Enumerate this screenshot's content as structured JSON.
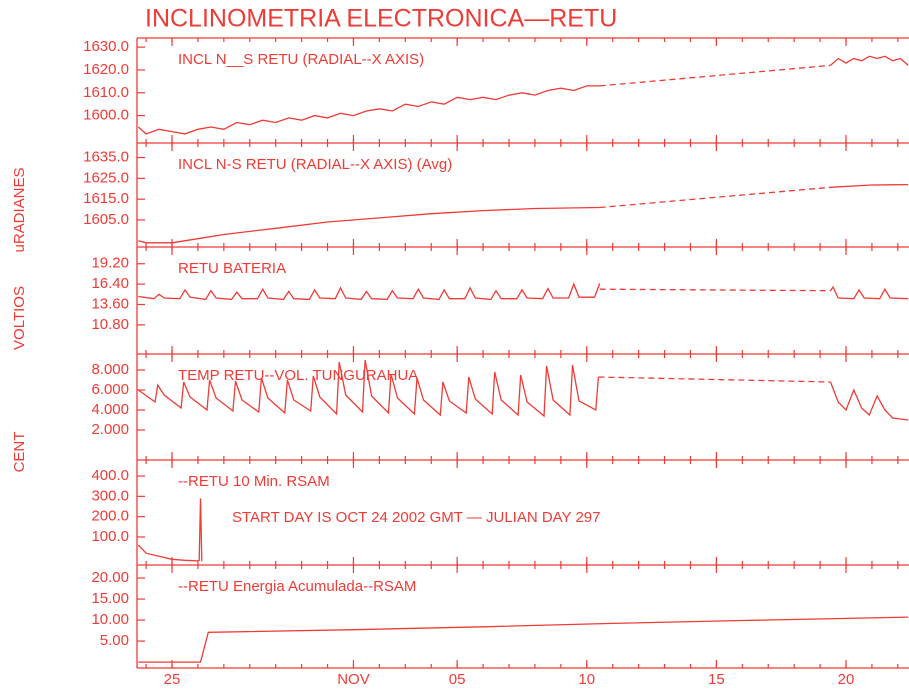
{
  "chart_data": {
    "type": "line",
    "title": "INCLINOMETRIA ELECTRONICA—RETU",
    "color": "#ee3b36",
    "ylabels": [
      "uRADIANES",
      "VOLTIOS",
      "CENT"
    ],
    "xlim": [
      296.65,
      326.43
    ],
    "xticks": [
      {
        "value": 298,
        "label": "25"
      },
      {
        "value": 305,
        "label": "NOV"
      },
      {
        "value": 309,
        "label": "05"
      },
      {
        "value": 314,
        "label": "10"
      },
      {
        "value": 319,
        "label": "15"
      },
      {
        "value": 324,
        "label": "20"
      }
    ],
    "xticks_minor": [
      297,
      298,
      299,
      300,
      301,
      302,
      303,
      304,
      305,
      306,
      307,
      308,
      309,
      310,
      311,
      312,
      313,
      314,
      315,
      316,
      317,
      318,
      319,
      320,
      321,
      322,
      323,
      324,
      325,
      326
    ],
    "panels": [
      {
        "labels": [
          "INCL N__S RETU (RADIAL--X AXIS)"
        ],
        "ylim": [
          1588,
          1634
        ],
        "yticks": [
          {
            "value": 1630,
            "label": "1630.0"
          },
          {
            "value": 1620,
            "label": "1620.0"
          },
          {
            "value": 1610,
            "label": "1610.0"
          },
          {
            "value": 1600,
            "label": "1600.0"
          }
        ],
        "lines": [
          {
            "x": [
              296.7,
              297,
              297.5,
              298,
              298.5,
              299,
              299.5,
              300,
              300.5,
              301,
              301.5,
              302,
              302.5,
              303,
              303.5,
              304,
              304.5,
              305,
              305.5,
              306,
              306.5,
              307,
              307.5,
              308,
              308.5,
              309,
              309.5,
              310,
              310.5,
              311,
              311.5,
              312,
              312.5,
              313,
              313.5,
              314,
              314.5
            ],
            "values": [
              1595,
              1592,
              1594,
              1593,
              1592,
              1594,
              1595,
              1594,
              1597,
              1596,
              1598,
              1597,
              1599,
              1598,
              1600,
              1599,
              1601,
              1600,
              1602,
              1603,
              1602,
              1605,
              1604,
              1606,
              1605,
              1608,
              1607,
              1608,
              1607,
              1609,
              1610,
              1609,
              1611,
              1612,
              1611,
              1613,
              1613
            ]
          },
          {
            "x": [
              314.5,
              323.4
            ],
            "values": [
              1613,
              1622
            ],
            "dashed": true
          },
          {
            "x": [
              323.4,
              323.7,
              324,
              324.3,
              324.6,
              324.9,
              325.2,
              325.5,
              325.8,
              326.1,
              326.4
            ],
            "values": [
              1622,
              1625,
              1623,
              1625,
              1624,
              1626,
              1625,
              1626,
              1624,
              1625,
              1622
            ]
          }
        ]
      },
      {
        "labels": [
          "INCL N-S RETU (RADIAL--X AXIS) (Avg)"
        ],
        "ylim": [
          1592,
          1642
        ],
        "yticks": [
          {
            "value": 1635,
            "label": "1635.0"
          },
          {
            "value": 1625,
            "label": "1625.0"
          },
          {
            "value": 1615,
            "label": "1615.0"
          },
          {
            "value": 1605,
            "label": "1605.0"
          }
        ],
        "lines": [
          {
            "x": [
              296.7,
              297,
              298,
              299,
              300,
              302,
              304,
              306,
              308,
              310,
              312,
              314.5
            ],
            "values": [
              1595,
              1594,
              1594,
              1596,
              1598,
              1601,
              1604,
              1606,
              1608,
              1609.5,
              1610.5,
              1611
            ]
          },
          {
            "x": [
              314.5,
              323.4
            ],
            "values": [
              1611,
              1620.7
            ],
            "dashed": true
          },
          {
            "x": [
              323.4,
              325,
              326.4
            ],
            "values": [
              1620.7,
              1621.8,
              1622
            ]
          }
        ]
      },
      {
        "labels": [
          "RETU BATERIA"
        ],
        "ylim": [
          6.8,
          21.5
        ],
        "yticks": [
          {
            "value": 19.2,
            "label": "19.20"
          },
          {
            "value": 16.4,
            "label": "16.40"
          },
          {
            "value": 13.6,
            "label": "13.60"
          },
          {
            "value": 10.8,
            "label": "10.80"
          }
        ],
        "lines": [
          {
            "x": [
              296.7,
              297.3,
              297.5,
              297.7,
              298.3,
              298.5,
              298.7,
              299.3,
              299.5,
              299.7,
              300.3,
              300.5,
              300.7,
              301.3,
              301.5,
              301.7,
              302.3,
              302.5,
              302.7,
              303.3,
              303.5,
              303.7,
              304.3,
              304.5,
              304.7,
              305.3,
              305.5,
              305.7,
              306.3,
              306.5,
              306.7,
              307.3,
              307.5,
              307.7,
              308.3,
              308.5,
              308.7,
              309.3,
              309.5,
              309.7,
              310.3,
              310.5,
              310.7,
              311.3,
              311.5,
              311.7,
              312.3,
              312.5,
              312.7,
              313.3,
              313.5,
              313.7,
              314.3,
              314.5
            ],
            "values": [
              14.7,
              14.4,
              15.0,
              14.5,
              14.4,
              15.6,
              14.6,
              14.3,
              15.5,
              14.5,
              14.3,
              15.3,
              14.4,
              14.4,
              15.7,
              14.5,
              14.3,
              15.4,
              14.4,
              14.3,
              15.6,
              14.5,
              14.4,
              15.9,
              14.5,
              14.3,
              15.4,
              14.4,
              14.3,
              15.5,
              14.5,
              14.4,
              15.7,
              14.5,
              14.3,
              15.6,
              14.4,
              14.4,
              15.9,
              14.5,
              14.3,
              15.5,
              14.4,
              14.4,
              15.6,
              14.5,
              14.4,
              15.8,
              14.5,
              14.5,
              16.4,
              14.6,
              14.6,
              16.5
            ]
          },
          {
            "x": [
              314.5,
              323.4
            ],
            "values": [
              15.7,
              15.5
            ],
            "dashed": true
          },
          {
            "x": [
              323.4,
              323.5,
              323.7,
              324.3,
              324.5,
              324.7,
              325.3,
              325.5,
              325.7,
              326.4
            ],
            "values": [
              15.5,
              16.0,
              14.5,
              14.4,
              15.6,
              14.5,
              14.4,
              15.7,
              14.5,
              14.4
            ]
          }
        ]
      },
      {
        "labels": [
          "TEMP RETU--VOL. TUNGURAHUA"
        ],
        "ylim": [
          -1,
          9.6
        ],
        "yticks": [
          {
            "value": 8,
            "label": "8.000"
          },
          {
            "value": 6,
            "label": "6.000"
          },
          {
            "value": 4,
            "label": "4.000"
          },
          {
            "value": 2,
            "label": "2.000"
          }
        ],
        "lines": [
          {
            "x": [
              296.7,
              297.35,
              297.45,
              297.7,
              298.35,
              298.45,
              298.7,
              299.35,
              299.45,
              299.7,
              300.35,
              300.45,
              300.7,
              301.35,
              301.45,
              301.7,
              302.35,
              302.45,
              302.7,
              303.35,
              303.45,
              303.7,
              304.35,
              304.45,
              304.7,
              305.35,
              305.45,
              305.7,
              306.35,
              306.45,
              306.7,
              307.35,
              307.45,
              307.7,
              308.35,
              308.45,
              308.7,
              309.35,
              309.45,
              309.7,
              310.35,
              310.45,
              310.7,
              311.35,
              311.45,
              311.7,
              312.35,
              312.45,
              312.7,
              313.35,
              313.45,
              313.7,
              314.35,
              314.45
            ],
            "values": [
              6.0,
              4.8,
              6.5,
              5.5,
              4.2,
              6.8,
              5.3,
              4.0,
              7.0,
              5.2,
              3.9,
              6.9,
              5.0,
              3.8,
              7.2,
              5.2,
              3.7,
              7.0,
              5.0,
              3.9,
              7.4,
              5.3,
              3.6,
              8.8,
              5.5,
              3.8,
              9.0,
              5.4,
              3.7,
              7.6,
              5.2,
              3.6,
              7.2,
              5.0,
              3.5,
              6.8,
              4.9,
              3.7,
              7.3,
              5.1,
              3.6,
              7.8,
              5.0,
              3.5,
              7.5,
              4.8,
              3.4,
              8.4,
              5.0,
              3.5,
              8.5,
              4.9,
              4.0,
              7.3
            ]
          },
          {
            "x": [
              314.45,
              323.4
            ],
            "values": [
              7.3,
              6.8
            ],
            "dashed": true
          },
          {
            "x": [
              323.4,
              323.7,
              324.0,
              324.3,
              324.6,
              324.9,
              325.2,
              325.5,
              325.8,
              326.4
            ],
            "values": [
              6.8,
              4.8,
              4.0,
              6.0,
              4.2,
              3.5,
              5.4,
              4.0,
              3.2,
              3.0
            ]
          }
        ]
      },
      {
        "labels": [
          "--RETU  10 Min. RSAM",
          "START DAY IS OCT 24 2002 GMT   — JULIAN DAY 297"
        ],
        "ylim": [
          -38,
          479
        ],
        "yticks": [
          {
            "value": 400,
            "label": "400.0"
          },
          {
            "value": 300,
            "label": "300.0"
          },
          {
            "value": 200,
            "label": "200.0"
          },
          {
            "value": 100,
            "label": "100.0"
          }
        ],
        "lines": [
          {
            "x": [
              296.7,
              297,
              297.5,
              298,
              298.5,
              299,
              299.05,
              299.1,
              299.15
            ],
            "values": [
              60,
              20,
              5,
              -10,
              -15,
              -18,
              -15,
              290,
              -20
            ]
          }
        ]
      },
      {
        "labels": [
          "--RETU Energia Acumulada--RSAM"
        ],
        "ylim": [
          -1.4,
          23.1
        ],
        "yticks": [
          {
            "value": 20,
            "label": "20.00"
          },
          {
            "value": 15,
            "label": "15.00"
          },
          {
            "value": 10,
            "label": "10.00"
          },
          {
            "value": 5,
            "label": "5.00"
          }
        ],
        "lines": [
          {
            "x": [
              296.7,
              299.1,
              299.4,
              305,
              310,
              315,
              320,
              326.4
            ],
            "values": [
              0,
              0,
              7.1,
              7.7,
              8.4,
              9.2,
              9.9,
              10.7
            ]
          }
        ]
      }
    ]
  }
}
